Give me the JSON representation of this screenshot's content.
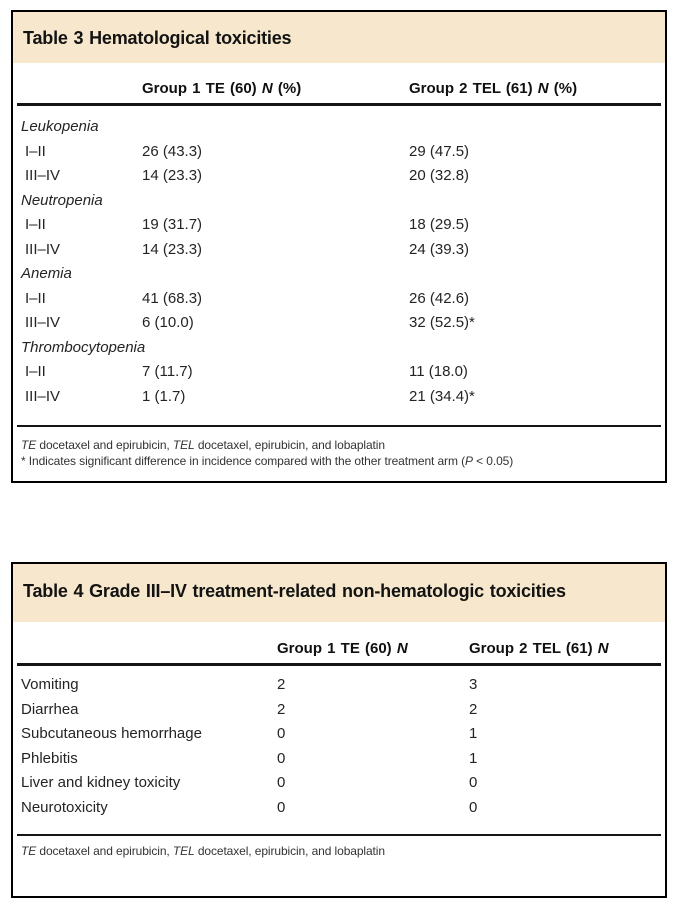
{
  "colors": {
    "title_band": "#f6e7cd",
    "border": "#000000",
    "rule": "#151515",
    "title_text": "#131313",
    "body_text": "#242424",
    "footnote_text": "#333333"
  },
  "table3": {
    "title": "Table 3 Hematological toxicities",
    "header": {
      "group1": {
        "pre": "Group 1 TE (60) ",
        "n": "N",
        "post": " (%)"
      },
      "group2": {
        "pre": "Group 2 TEL (61) ",
        "n": "N",
        "post": " (%)"
      }
    },
    "rows": [
      {
        "label": "Leukopenia",
        "g1": "",
        "g2": ""
      },
      {
        "label": "I–II",
        "g1": "26 (43.3)",
        "g2": "29 (47.5)"
      },
      {
        "label": "III–IV",
        "g1": "14 (23.3)",
        "g2": "20 (32.8)"
      },
      {
        "label": "Neutropenia",
        "g1": "",
        "g2": ""
      },
      {
        "label": "I–II",
        "g1": "19 (31.7)",
        "g2": "18 (29.5)"
      },
      {
        "label": "III–IV",
        "g1": "14 (23.3)",
        "g2": "24 (39.3)"
      },
      {
        "label": "Anemia",
        "g1": "",
        "g2": ""
      },
      {
        "label": "I–II",
        "g1": "41 (68.3)",
        "g2": "26 (42.6)"
      },
      {
        "label": "III–IV",
        "g1": "6 (10.0)",
        "g2": "32 (52.5)*"
      },
      {
        "label": "Thrombocytopenia",
        "g1": "",
        "g2": ""
      },
      {
        "label": "I–II",
        "g1": "7 (11.7)",
        "g2": "11 (18.0)"
      },
      {
        "label": "III–IV",
        "g1": "1 (1.7)",
        "g2": "21 (34.4)*"
      }
    ],
    "footnote_abbrev": {
      "i1": "TE",
      "t1": " docetaxel and epirubicin, ",
      "i2": "TEL",
      "t2": " docetaxel, epirubicin, and lobaplatin"
    },
    "footnote_sig": {
      "t1": "* Indicates significant difference in incidence compared with the other treatment arm (",
      "i1": "P",
      "t2": " < 0.05)"
    }
  },
  "table4": {
    "title": "Table 4 Grade III–IV treatment-related non-hematologic toxicities",
    "header": {
      "group1": {
        "pre": "Group 1 TE (60) ",
        "n": "N",
        "post": ""
      },
      "group2": {
        "pre": "Group 2 TEL (61) ",
        "n": "N",
        "post": ""
      }
    },
    "rows": [
      {
        "label": "Vomiting",
        "g1": "2",
        "g2": "3"
      },
      {
        "label": "Diarrhea",
        "g1": "2",
        "g2": "2"
      },
      {
        "label": "Subcutaneous hemorrhage",
        "g1": "0",
        "g2": "1"
      },
      {
        "label": "Phlebitis",
        "g1": "0",
        "g2": "1"
      },
      {
        "label": "Liver and kidney toxicity",
        "g1": "0",
        "g2": "0"
      },
      {
        "label": "Neurotoxicity",
        "g1": "0",
        "g2": "0"
      }
    ],
    "footnote_abbrev": {
      "i1": "TE",
      "t1": " docetaxel and epirubicin, ",
      "i2": "TEL",
      "t2": " docetaxel, epirubicin, and lobaplatin"
    }
  }
}
